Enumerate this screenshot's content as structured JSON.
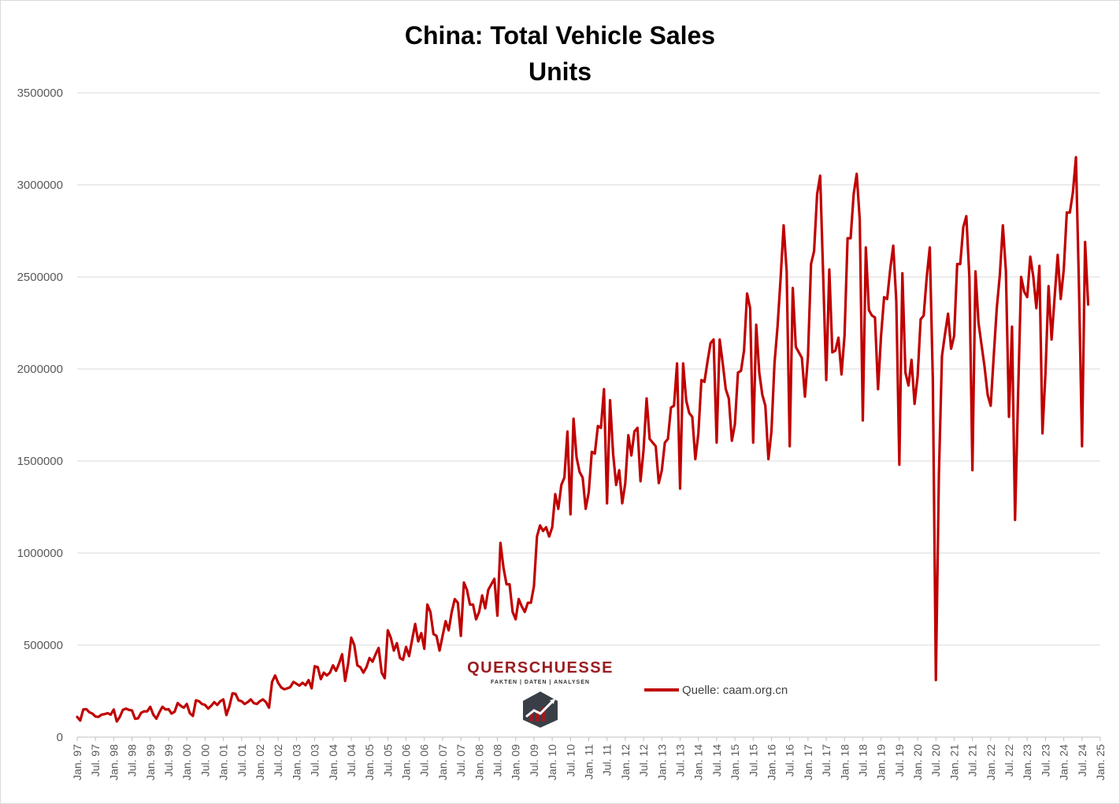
{
  "chart_data": {
    "type": "line",
    "title": "China: Total Vehicle Sales",
    "subtitle": "Units",
    "xlabel": "",
    "ylabel": "",
    "ylim": [
      0,
      3500000
    ],
    "yticks": [
      "0",
      "500000",
      "1000000",
      "1500000",
      "2000000",
      "2500000",
      "3000000",
      "3500000"
    ],
    "xticks": [
      "Jan. 97",
      "Jul. 97",
      "Jan. 98",
      "Jul. 98",
      "Jan. 99",
      "Jul. 99",
      "Jan. 00",
      "Jul. 00",
      "Jan. 01",
      "Jul. 01",
      "Jan. 02",
      "Jul. 02",
      "Jan. 03",
      "Jul. 03",
      "Jan. 04",
      "Jul. 04",
      "Jan. 05",
      "Jul. 05",
      "Jan. 06",
      "Jul. 06",
      "Jan. 07",
      "Jul. 07",
      "Jan. 08",
      "Jul. 08",
      "Jan. 09",
      "Jul. 09",
      "Jan. 10",
      "Jul. 10",
      "Jan. 11",
      "Jul. 11",
      "Jan. 12",
      "Jul. 12",
      "Jan. 13",
      "Jul. 13",
      "Jan. 14",
      "Jul. 14",
      "Jan. 15",
      "Jul. 15",
      "Jan. 16",
      "Jul. 16",
      "Jan. 17",
      "Jul. 17",
      "Jan. 18",
      "Jul. 18",
      "Jan. 19",
      "Jul. 19",
      "Jan. 20",
      "Jul. 20",
      "Jan. 21",
      "Jul. 21",
      "Jan. 22",
      "Jul. 22",
      "Jan. 23",
      "Jul. 23",
      "Jan. 24",
      "Jul. 24",
      "Jan. 25"
    ],
    "grid": true,
    "legend_position": "bottom-right",
    "series": [
      {
        "name": "Quelle: caam.org.cn",
        "color": "#c00000",
        "start": "Jan. 97",
        "frequency": "monthly",
        "values": [
          110000,
          90000,
          150000,
          152000,
          135000,
          128000,
          112000,
          110000,
          122000,
          125000,
          130000,
          122000,
          150000,
          85000,
          110000,
          148000,
          155000,
          148000,
          145000,
          100000,
          102000,
          132000,
          140000,
          140000,
          165000,
          122000,
          100000,
          135000,
          165000,
          150000,
          152000,
          128000,
          138000,
          185000,
          170000,
          160000,
          180000,
          130000,
          115000,
          200000,
          195000,
          180000,
          175000,
          155000,
          170000,
          190000,
          175000,
          195000,
          205000,
          120000,
          168000,
          238000,
          235000,
          200000,
          195000,
          180000,
          190000,
          205000,
          185000,
          180000,
          195000,
          205000,
          190000,
          160000,
          300000,
          335000,
          295000,
          270000,
          260000,
          265000,
          272000,
          300000,
          290000,
          280000,
          295000,
          282000,
          310000,
          265000,
          385000,
          380000,
          315000,
          350000,
          335000,
          350000,
          390000,
          360000,
          400000,
          450000,
          305000,
          400000,
          540000,
          500000,
          390000,
          380000,
          350000,
          380000,
          430000,
          410000,
          450000,
          485000,
          350000,
          320000,
          580000,
          540000,
          470000,
          510000,
          430000,
          420000,
          490000,
          440000,
          530000,
          615000,
          520000,
          565000,
          480000,
          720000,
          680000,
          560000,
          550000,
          470000,
          550000,
          630000,
          580000,
          680000,
          750000,
          730000,
          550000,
          840000,
          800000,
          720000,
          720000,
          640000,
          680000,
          770000,
          700000,
          800000,
          830000,
          860000,
          660000,
          1055000,
          920000,
          830000,
          830000,
          680000,
          640000,
          750000,
          710000,
          680000,
          730000,
          730000,
          820000,
          1090000,
          1150000,
          1120000,
          1140000,
          1090000,
          1140000,
          1320000,
          1240000,
          1370000,
          1410000,
          1660000,
          1210000,
          1730000,
          1520000,
          1440000,
          1410000,
          1240000,
          1330000,
          1550000,
          1540000,
          1690000,
          1680000,
          1890000,
          1270000,
          1830000,
          1540000,
          1370000,
          1450000,
          1270000,
          1380000,
          1640000,
          1530000,
          1660000,
          1680000,
          1390000,
          1560000,
          1840000,
          1620000,
          1600000,
          1580000,
          1380000,
          1450000,
          1600000,
          1620000,
          1790000,
          1800000,
          2030000,
          1350000,
          2030000,
          1830000,
          1760000,
          1740000,
          1510000,
          1650000,
          1940000,
          1930000,
          2040000,
          2140000,
          2160000,
          1600000,
          2160000,
          2030000,
          1890000,
          1840000,
          1610000,
          1700000,
          1980000,
          1990000,
          2100000,
          2410000,
          2330000,
          1600000,
          2240000,
          1980000,
          1860000,
          1800000,
          1510000,
          1660000,
          2030000,
          2230000,
          2490000,
          2780000,
          2530000,
          1580000,
          2440000,
          2120000,
          2090000,
          2060000,
          1850000,
          2070000,
          2570000,
          2640000,
          2950000,
          3050000,
          2500000,
          1940000,
          2540000,
          2090000,
          2100000,
          2170000,
          1970000,
          2180000,
          2710000,
          2710000,
          2950000,
          3060000,
          2810000,
          1720000,
          2660000,
          2320000,
          2290000,
          2280000,
          1890000,
          2180000,
          2390000,
          2380000,
          2540000,
          2670000,
          2370000,
          1480000,
          2520000,
          1980000,
          1910000,
          2050000,
          1810000,
          1960000,
          2270000,
          2290000,
          2500000,
          2660000,
          1940000,
          310000,
          1430000,
          2070000,
          2190000,
          2300000,
          2110000,
          2180000,
          2570000,
          2570000,
          2770000,
          2830000,
          2500000,
          1450000,
          2530000,
          2250000,
          2130000,
          2010000,
          1860000,
          1800000,
          2070000,
          2330000,
          2510000,
          2780000,
          2530000,
          1740000,
          2230000,
          1180000,
          1860000,
          2500000,
          2420000,
          2390000,
          2610000,
          2500000,
          2330000,
          2560000,
          1650000,
          1980000,
          2450000,
          2160000,
          2390000,
          2620000,
          2380000,
          2540000,
          2850000,
          2850000,
          2960000,
          3150000,
          2440000,
          1580000,
          2690000,
          2350000
        ]
      }
    ]
  },
  "logo": {
    "name": "QUERSCHUESSE",
    "tagline": "FAKTEN | DATEN | ANALYSEN"
  }
}
